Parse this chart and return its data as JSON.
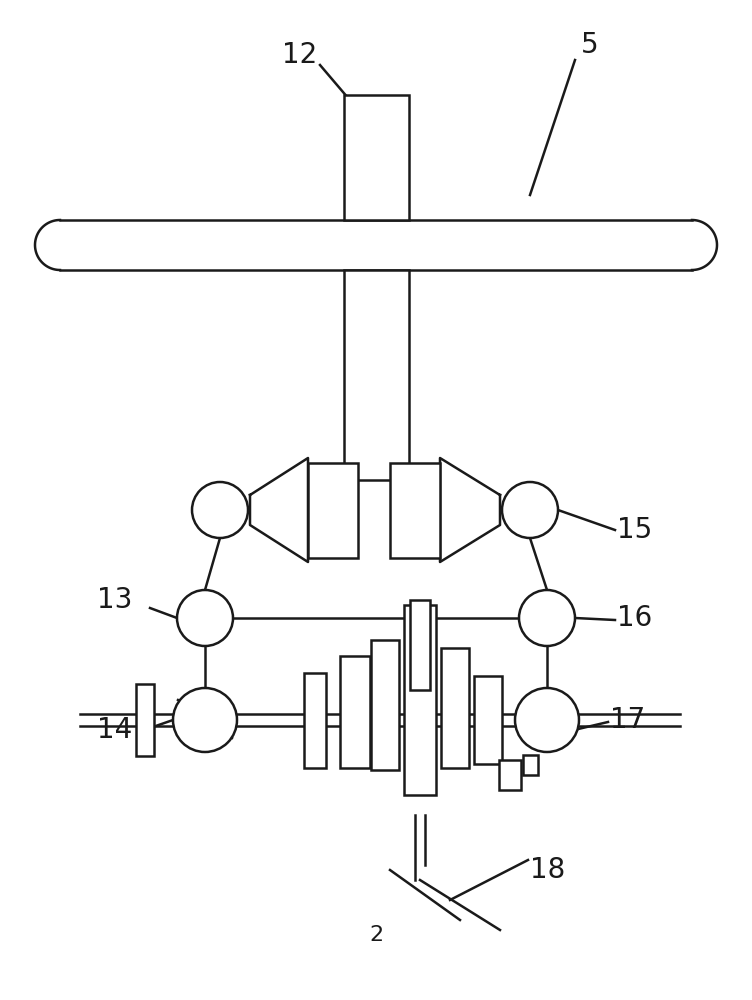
{
  "bg_color": "#ffffff",
  "line_color": "#1a1a1a",
  "line_width": 1.8,
  "fig_width": 7.52,
  "fig_height": 10.0,
  "label_fontsize": 20
}
